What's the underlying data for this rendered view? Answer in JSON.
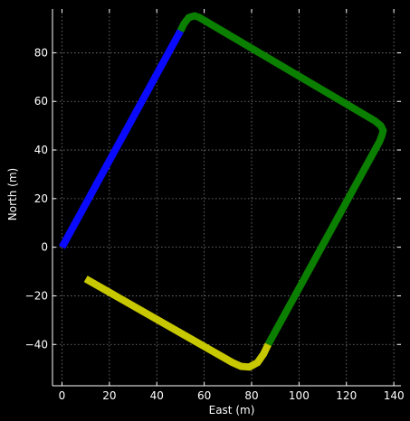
{
  "chart_data": {
    "type": "line",
    "xlabel": "East (m)",
    "ylabel": "North (m)",
    "xlim": [
      -4,
      143
    ],
    "ylim": [
      -57,
      98
    ],
    "xticks": [
      0,
      20,
      40,
      60,
      80,
      100,
      120,
      140
    ],
    "yticks": [
      -40,
      -20,
      0,
      20,
      40,
      60,
      80
    ],
    "grid": true,
    "colors": {
      "background": "#000000",
      "axes": "#ffffff",
      "grid": "#808080",
      "blue": "#0a0aff",
      "green": "#0a7f00",
      "yellow": "#c8c800"
    },
    "series": [
      {
        "color": "#0a0aff",
        "x": [
          0,
          50
        ],
        "y": [
          0,
          89
        ]
      },
      {
        "color": "#0a7f00",
        "x": [
          50,
          51.5,
          53.5,
          56,
          58,
          132,
          134.5,
          135.5,
          135,
          134,
          87
        ],
        "y": [
          89,
          92,
          94.5,
          95.2,
          94.5,
          52,
          50,
          48,
          46,
          43.5,
          -40
        ]
      },
      {
        "color": "#c8c800",
        "x": [
          87,
          85,
          82.5,
          79,
          75.5,
          72,
          10
        ],
        "y": [
          -40,
          -44,
          -47.5,
          -49.3,
          -49,
          -47.5,
          -13
        ]
      }
    ]
  }
}
